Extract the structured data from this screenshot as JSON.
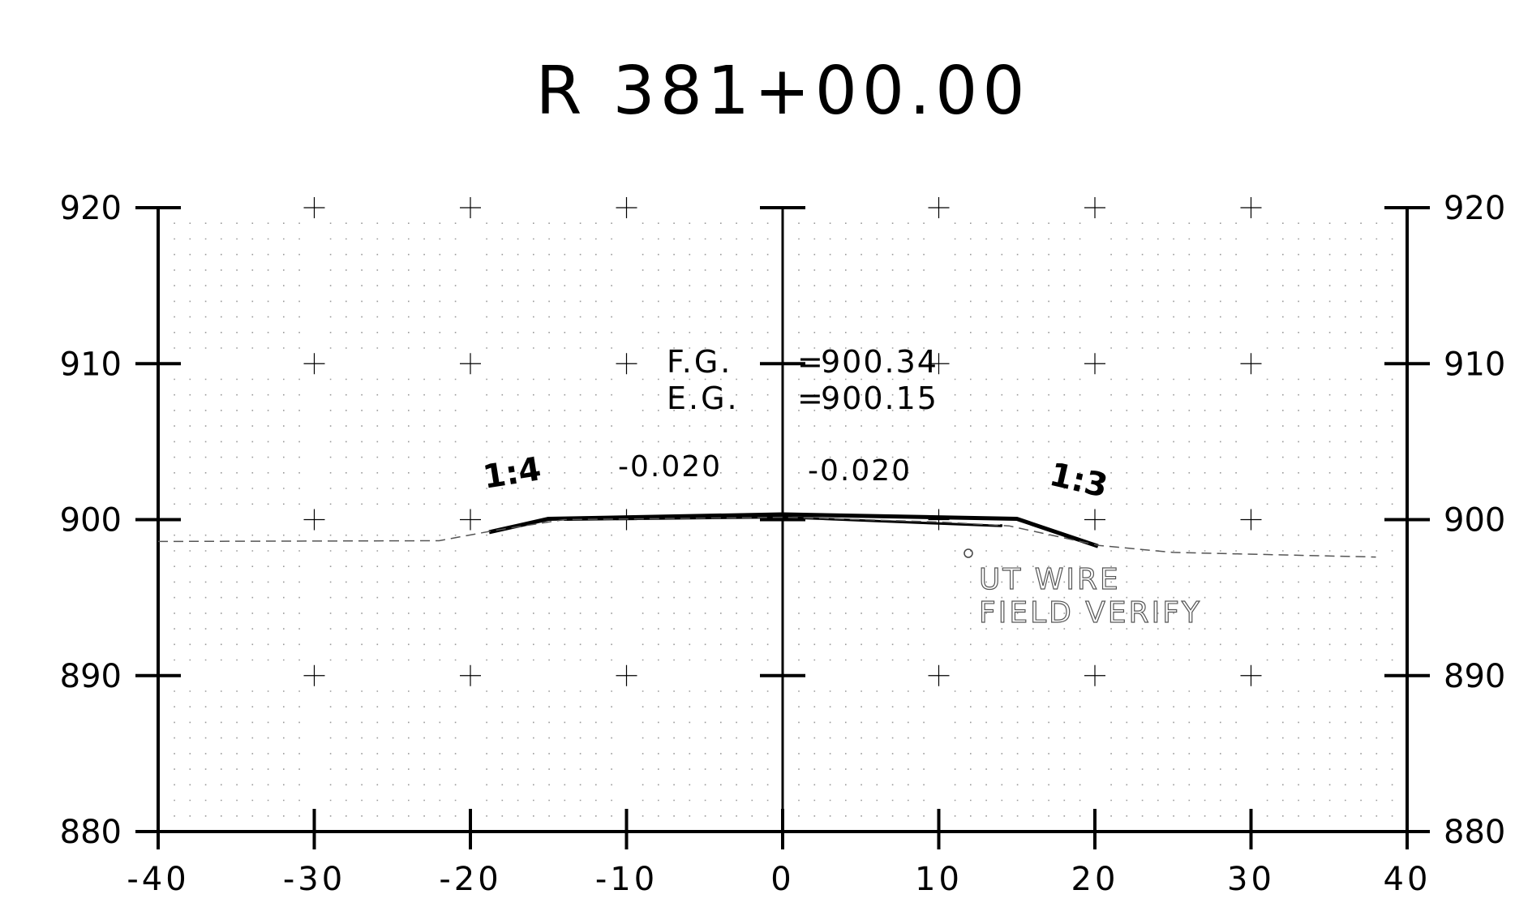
{
  "title": "R 381+00.00",
  "section": {
    "x_range": [
      -40,
      40
    ],
    "y_range": [
      880,
      920
    ],
    "x_ticks": [
      -40,
      -30,
      -20,
      -10,
      0,
      10,
      20,
      30,
      40
    ],
    "y_ticks": [
      880,
      890,
      900,
      910,
      920
    ],
    "x_tick_labels": [
      "-40",
      "-30",
      "-20",
      "-10",
      "0",
      "10",
      "20",
      "30",
      "40"
    ],
    "y_tick_labels": [
      "880",
      "890",
      "900",
      "910",
      "920"
    ],
    "grid": "dotted, 1-unit spacing with + markers at 10-unit intersections",
    "colors": {
      "ink": "#000000",
      "grid_dot": "#9a9a9a",
      "ground": "#555555"
    }
  },
  "annotations": {
    "fg": {
      "label": "F.G.",
      "eq": "=",
      "value": "900.34"
    },
    "eg": {
      "label": "E.G.",
      "eq": "=",
      "value": "900.15"
    },
    "slope_left": "1:4",
    "slope_right": "1:3",
    "cross_slope_left": "-0.020",
    "cross_slope_right": "-0.020",
    "utility": {
      "line1": "UT WIRE",
      "line2": "FIELD VERIFY"
    }
  },
  "chart_data": {
    "type": "line",
    "title": "R 381+00.00",
    "xlabel": "",
    "ylabel": "",
    "xlim": [
      -40,
      40
    ],
    "ylim": [
      880,
      920
    ],
    "series": [
      {
        "role": "proposed grade (bold)",
        "x": [
          -18.8,
          -15.0,
          0.0,
          15.0,
          20.2
        ],
        "y": [
          899.2,
          900.05,
          900.34,
          900.05,
          898.3
        ]
      },
      {
        "role": "proposed grade inner edge",
        "x": [
          -14.0,
          0.0,
          10.0,
          14.0,
          14.0
        ],
        "y": [
          900.0,
          900.15,
          899.75,
          899.6,
          899.7
        ]
      },
      {
        "role": "existing ground (dashed)",
        "x": [
          -40.0,
          -22.0,
          -18.5,
          -14.0,
          0.0,
          10.0,
          14.5,
          20.2,
          25.0,
          38.0
        ],
        "y": [
          898.6,
          898.65,
          899.3,
          900.0,
          900.15,
          899.85,
          899.6,
          898.35,
          897.9,
          897.6
        ]
      }
    ],
    "points": [
      {
        "name": "UT WIRE",
        "x": 11.9,
        "y": 897.7
      }
    ]
  }
}
